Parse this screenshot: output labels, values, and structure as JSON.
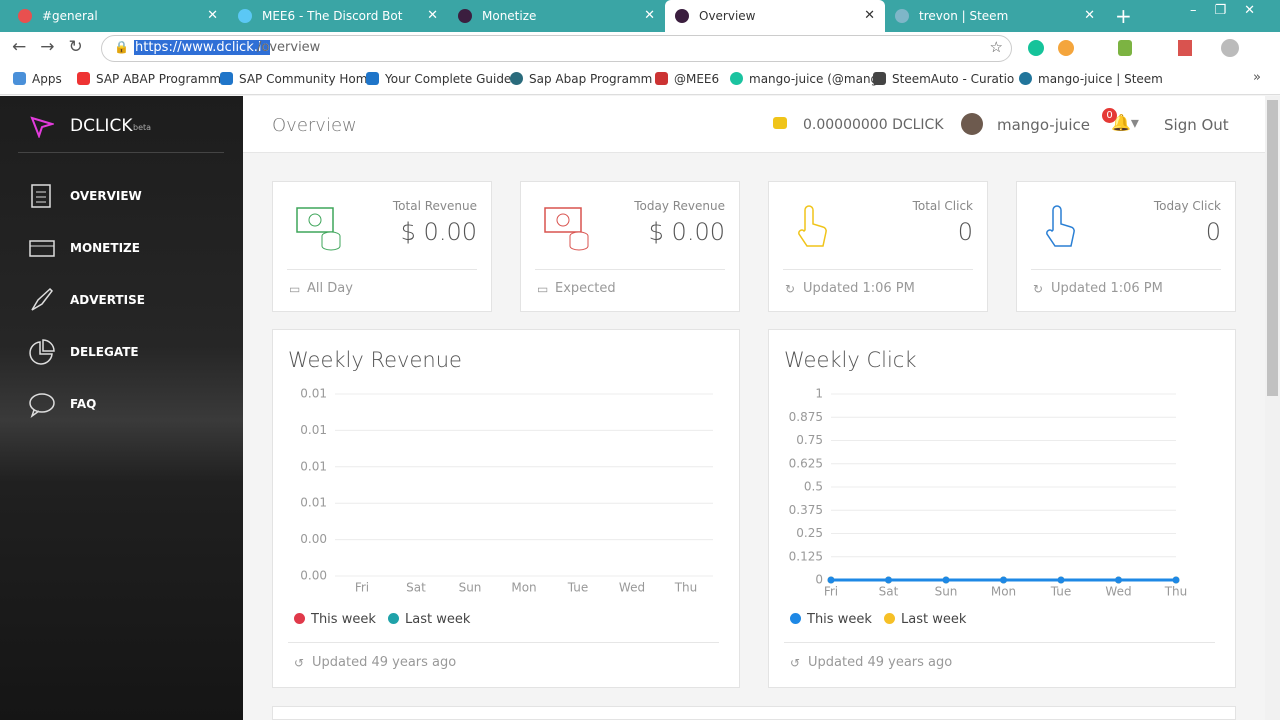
{
  "browser": {
    "tabs": [
      "#general",
      "MEE6 - The Discord Bot",
      "Monetize",
      "Overview",
      "trevon | Steem"
    ],
    "url_host": "https://www.dclick.io",
    "url_path": "/overview",
    "bookmarks": [
      "Apps",
      "SAP ABAP Programm",
      "SAP Community Hom",
      "Your Complete Guide",
      "Sap Abap Programm",
      "@MEE6",
      "mango-juice (@mang",
      "SteemAuto - Curatio",
      "mango-juice | Steem"
    ]
  },
  "app": {
    "brand": "DCLICK",
    "beta": "beta",
    "nav": [
      "OVERVIEW",
      "MONETIZE",
      "ADVERTISE",
      "DELEGATE",
      "FAQ"
    ],
    "header": {
      "title": "Overview",
      "balance": "0.00000000 DCLICK",
      "user": "mango-juice",
      "notifications": 0,
      "sign_out": "Sign Out"
    },
    "cards": [
      {
        "label": "Total Revenue",
        "value": "$ 0.00",
        "footer": "All Day"
      },
      {
        "label": "Today Revenue",
        "value": "$ 0.00",
        "footer": "Expected"
      },
      {
        "label": "Total Click",
        "value": 0,
        "footer": "Updated 1:06 PM"
      },
      {
        "label": "Today Click",
        "value": 0,
        "footer": "Updated 1:06 PM"
      }
    ],
    "chart_footers": [
      "Updated 49 years ago",
      "Updated 49 years ago"
    ]
  },
  "chart_data": [
    {
      "type": "bar",
      "title": "Weekly Revenue",
      "categories": [
        "Fri",
        "Sat",
        "Sun",
        "Mon",
        "Tue",
        "Wed",
        "Thu"
      ],
      "series": [
        {
          "name": "This week",
          "color": "#e0394a",
          "values": [
            null,
            null,
            null,
            null,
            null,
            null,
            null
          ]
        },
        {
          "name": "Last week",
          "color": "#1fa2a9",
          "values": [
            null,
            null,
            null,
            null,
            null,
            null,
            null
          ]
        }
      ],
      "ylim": [
        0.002,
        0.012
      ],
      "yticks": [
        {
          "value": 0.002,
          "label": "0.00"
        },
        {
          "value": 0.004,
          "label": "0.00"
        },
        {
          "value": 0.006,
          "label": "0.01"
        },
        {
          "value": 0.008,
          "label": "0.01"
        },
        {
          "value": 0.01,
          "label": "0.01"
        },
        {
          "value": 0.012,
          "label": "0.01"
        }
      ],
      "grid": true
    },
    {
      "type": "line",
      "title": "Weekly Click",
      "categories": [
        "Fri",
        "Sat",
        "Sun",
        "Mon",
        "Tue",
        "Wed",
        "Thu"
      ],
      "series": [
        {
          "name": "This week",
          "color": "#1e88e5",
          "values": [
            0,
            0,
            0,
            0,
            0,
            0,
            0
          ]
        },
        {
          "name": "Last week",
          "color": "#f6c026",
          "values": [
            0,
            0,
            0,
            0,
            0,
            0,
            0
          ]
        }
      ],
      "ylim": [
        0,
        1
      ],
      "yticks": [
        0,
        0.125,
        0.25,
        0.375,
        0.5,
        0.625,
        0.75,
        0.875,
        1
      ],
      "grid": true
    }
  ]
}
